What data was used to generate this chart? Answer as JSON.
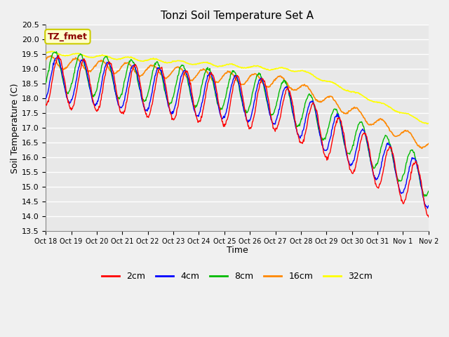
{
  "title": "Tonzi Soil Temperature Set A",
  "xlabel": "Time",
  "ylabel": "Soil Temperature (C)",
  "ylim": [
    13.5,
    20.5
  ],
  "figsize": [
    6.4,
    4.8
  ],
  "dpi": 100,
  "colors": {
    "2cm": "#ff0000",
    "4cm": "#0000ff",
    "8cm": "#00bb00",
    "16cm": "#ff8800",
    "32cm": "#ffff00"
  },
  "legend_label": "TZ_fmet",
  "xtick_labels": [
    "Oct 18",
    "Oct 19",
    "Oct 20",
    "Oct 21",
    "Oct 22",
    "Oct 23",
    "Oct 24",
    "Oct 25",
    "Oct 26",
    "Oct 27",
    "Oct 28",
    "Oct 29",
    "Oct 30",
    "Oct 31",
    "Nov 1",
    "Nov 2"
  ],
  "ytick_values": [
    13.5,
    14.0,
    14.5,
    15.0,
    15.5,
    16.0,
    16.5,
    17.0,
    17.5,
    18.0,
    18.5,
    19.0,
    19.5,
    20.0,
    20.5
  ],
  "plot_bg": "#e8e8e8",
  "fig_bg": "#f0f0f0"
}
